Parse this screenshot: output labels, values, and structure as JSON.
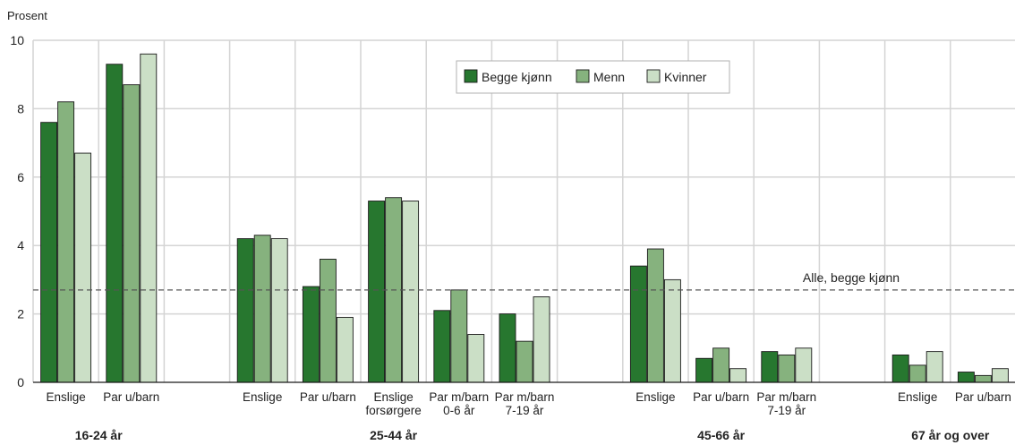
{
  "chart_data": {
    "type": "bar",
    "unit_label": "Prosent",
    "ylim": [
      0,
      10
    ],
    "y_ticks": [
      "0",
      "2",
      "4",
      "6",
      "8",
      "10"
    ],
    "grid": true,
    "legend_position": "top-center",
    "series": [
      {
        "name": "Begge kjønn",
        "color": "#27772f"
      },
      {
        "name": "Menn",
        "color": "#86b27e"
      },
      {
        "name": "Kvinner",
        "color": "#cbdfc6"
      }
    ],
    "groups": [
      {
        "label": "16-24 år",
        "categories": [
          {
            "label": [
              "Enslige"
            ],
            "values": [
              7.6,
              8.2,
              6.7
            ]
          },
          {
            "label": [
              "Par u/barn"
            ],
            "values": [
              9.3,
              8.7,
              9.6
            ]
          }
        ]
      },
      {
        "label": "25-44 år",
        "categories": [
          {
            "label": [
              "Enslige"
            ],
            "values": [
              4.2,
              4.3,
              4.2
            ]
          },
          {
            "label": [
              "Par u/barn"
            ],
            "values": [
              2.8,
              3.6,
              1.9
            ]
          },
          {
            "label": [
              "Enslige",
              "forsørgere"
            ],
            "values": [
              5.3,
              5.4,
              5.3
            ]
          },
          {
            "label": [
              "Par m/barn",
              "0-6 år"
            ],
            "values": [
              2.1,
              2.7,
              1.4
            ]
          },
          {
            "label": [
              "Par m/barn",
              "7-19 år"
            ],
            "values": [
              2.0,
              1.2,
              2.5
            ]
          }
        ]
      },
      {
        "label": "45-66 år",
        "categories": [
          {
            "label": [
              "Enslige"
            ],
            "values": [
              3.4,
              3.9,
              3.0
            ]
          },
          {
            "label": [
              "Par u/barn"
            ],
            "values": [
              0.7,
              1.0,
              0.4
            ]
          },
          {
            "label": [
              "Par m/barn",
              "7-19 år"
            ],
            "values": [
              0.9,
              0.8,
              1.0
            ]
          }
        ]
      },
      {
        "label": "67 år og over",
        "categories": [
          {
            "label": [
              "Enslige"
            ],
            "values": [
              0.8,
              0.5,
              0.9
            ]
          },
          {
            "label": [
              "Par u/barn"
            ],
            "values": [
              0.3,
              0.2,
              0.4
            ]
          }
        ]
      }
    ],
    "reference_line": {
      "label": "Alle, begge kjønn",
      "value": 2.7
    }
  }
}
